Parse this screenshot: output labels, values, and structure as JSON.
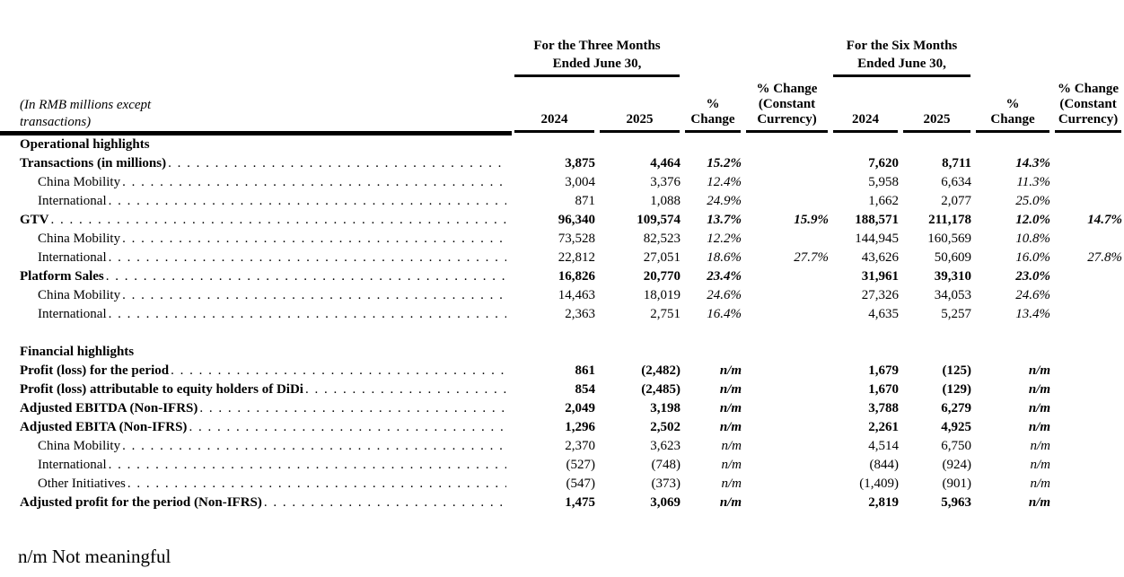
{
  "page": {
    "footnote": "n/m Not meaningful"
  },
  "table": {
    "caption_lines": [
      "(In RMB millions except",
      "transactions)"
    ],
    "period_groups": [
      {
        "line1": "For the Three Months",
        "line2": "Ended June 30,"
      },
      {
        "line1": "For the Six Months",
        "line2": "Ended June 30,"
      }
    ],
    "column_headers": {
      "year_2024": "2024",
      "year_2025": "2025",
      "pct_change_lines": [
        "%",
        "Change"
      ],
      "pct_change_cc_lines": [
        "% Change",
        "(Constant",
        "Currency)"
      ]
    },
    "rows": [
      {
        "type": "section",
        "label": "Operational highlights"
      },
      {
        "type": "data",
        "bold": true,
        "indent": 0,
        "label": "Transactions (in millions)",
        "values": [
          "3,875",
          "4,464",
          "15.2%",
          "",
          "7,620",
          "8,711",
          "14.3%",
          ""
        ]
      },
      {
        "type": "data",
        "bold": false,
        "indent": 1,
        "label": "China Mobility",
        "values": [
          "3,004",
          "3,376",
          "12.4%",
          "",
          "5,958",
          "6,634",
          "11.3%",
          ""
        ]
      },
      {
        "type": "data",
        "bold": false,
        "indent": 1,
        "label": "International",
        "values": [
          "871",
          "1,088",
          "24.9%",
          "",
          "1,662",
          "2,077",
          "25.0%",
          ""
        ]
      },
      {
        "type": "data",
        "bold": true,
        "indent": 0,
        "label": "GTV",
        "values": [
          "96,340",
          "109,574",
          "13.7%",
          "15.9%",
          "188,571",
          "211,178",
          "12.0%",
          "14.7%"
        ]
      },
      {
        "type": "data",
        "bold": false,
        "indent": 1,
        "label": "China Mobility",
        "values": [
          "73,528",
          "82,523",
          "12.2%",
          "",
          "144,945",
          "160,569",
          "10.8%",
          ""
        ]
      },
      {
        "type": "data",
        "bold": false,
        "indent": 1,
        "label": "International",
        "values": [
          "22,812",
          "27,051",
          "18.6%",
          "27.7%",
          "43,626",
          "50,609",
          "16.0%",
          "27.8%"
        ]
      },
      {
        "type": "data",
        "bold": true,
        "indent": 0,
        "label": "Platform Sales",
        "values": [
          "16,826",
          "20,770",
          "23.4%",
          "",
          "31,961",
          "39,310",
          "23.0%",
          ""
        ]
      },
      {
        "type": "data",
        "bold": false,
        "indent": 1,
        "label": "China Mobility",
        "values": [
          "14,463",
          "18,019",
          "24.6%",
          "",
          "27,326",
          "34,053",
          "24.6%",
          ""
        ]
      },
      {
        "type": "data",
        "bold": false,
        "indent": 1,
        "label": "International",
        "values": [
          "2,363",
          "2,751",
          "16.4%",
          "",
          "4,635",
          "5,257",
          "13.4%",
          ""
        ]
      },
      {
        "type": "spacer"
      },
      {
        "type": "section",
        "label": "Financial highlights"
      },
      {
        "type": "data",
        "bold": true,
        "indent": 0,
        "label": "Profit (loss) for the period",
        "values": [
          "861",
          "(2,482)",
          "n/m",
          "",
          "1,679",
          "(125)",
          "n/m",
          ""
        ]
      },
      {
        "type": "data",
        "bold": true,
        "indent": 0,
        "label": "Profit (loss) attributable to equity holders of DiDi",
        "values": [
          "854",
          "(2,485)",
          "n/m",
          "",
          "1,670",
          "(129)",
          "n/m",
          ""
        ]
      },
      {
        "type": "data",
        "bold": true,
        "indent": 0,
        "label": "Adjusted EBITDA (Non-IFRS)",
        "values": [
          "2,049",
          "3,198",
          "n/m",
          "",
          "3,788",
          "6,279",
          "n/m",
          ""
        ]
      },
      {
        "type": "data",
        "bold": true,
        "indent": 0,
        "label": "Adjusted EBITA (Non-IFRS)",
        "values": [
          "1,296",
          "2,502",
          "n/m",
          "",
          "2,261",
          "4,925",
          "n/m",
          ""
        ]
      },
      {
        "type": "data",
        "bold": false,
        "indent": 1,
        "label": "China Mobility",
        "values": [
          "2,370",
          "3,623",
          "n/m",
          "",
          "4,514",
          "6,750",
          "n/m",
          ""
        ]
      },
      {
        "type": "data",
        "bold": false,
        "indent": 1,
        "label": "International",
        "values": [
          "(527)",
          "(748)",
          "n/m",
          "",
          "(844)",
          "(924)",
          "n/m",
          ""
        ]
      },
      {
        "type": "data",
        "bold": false,
        "indent": 1,
        "label": "Other Initiatives",
        "values": [
          "(547)",
          "(373)",
          "n/m",
          "",
          "(1,409)",
          "(901)",
          "n/m",
          ""
        ]
      },
      {
        "type": "data",
        "bold": true,
        "indent": 0,
        "label": "Adjusted profit for the period (Non-IFRS)",
        "values": [
          "1,475",
          "3,069",
          "n/m",
          "",
          "2,819",
          "5,963",
          "n/m",
          ""
        ]
      }
    ]
  },
  "colors": {
    "text": "#000000",
    "background": "#ffffff"
  }
}
